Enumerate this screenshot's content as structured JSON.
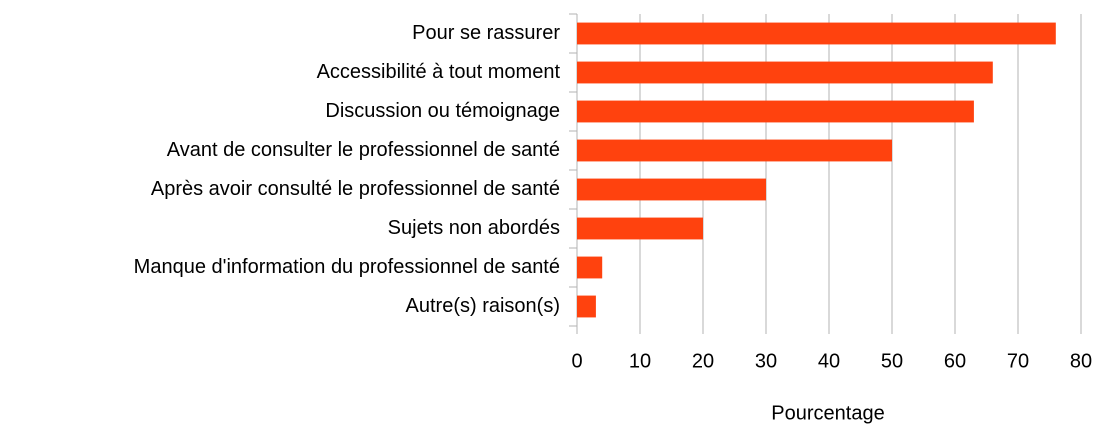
{
  "chart_data": {
    "type": "bar",
    "orientation": "horizontal",
    "x_label": "Pourcentage",
    "categories": [
      "Pour se rassurer",
      "Accessibilité à tout moment",
      "Discussion ou témoignage",
      "Avant de consulter le professionnel de santé",
      "Après avoir consulté le professionnel de santé",
      "Sujets non abordés",
      "Manque d'information du professionnel de santé",
      "Autre(s) raison(s)"
    ],
    "values": [
      76,
      66,
      63,
      50,
      30,
      20,
      4,
      3
    ],
    "color": "#ff420e",
    "xlim": [
      0,
      80
    ],
    "xticks": [
      0,
      10,
      20,
      30,
      40,
      50,
      60,
      70,
      80
    ],
    "grid": true
  }
}
